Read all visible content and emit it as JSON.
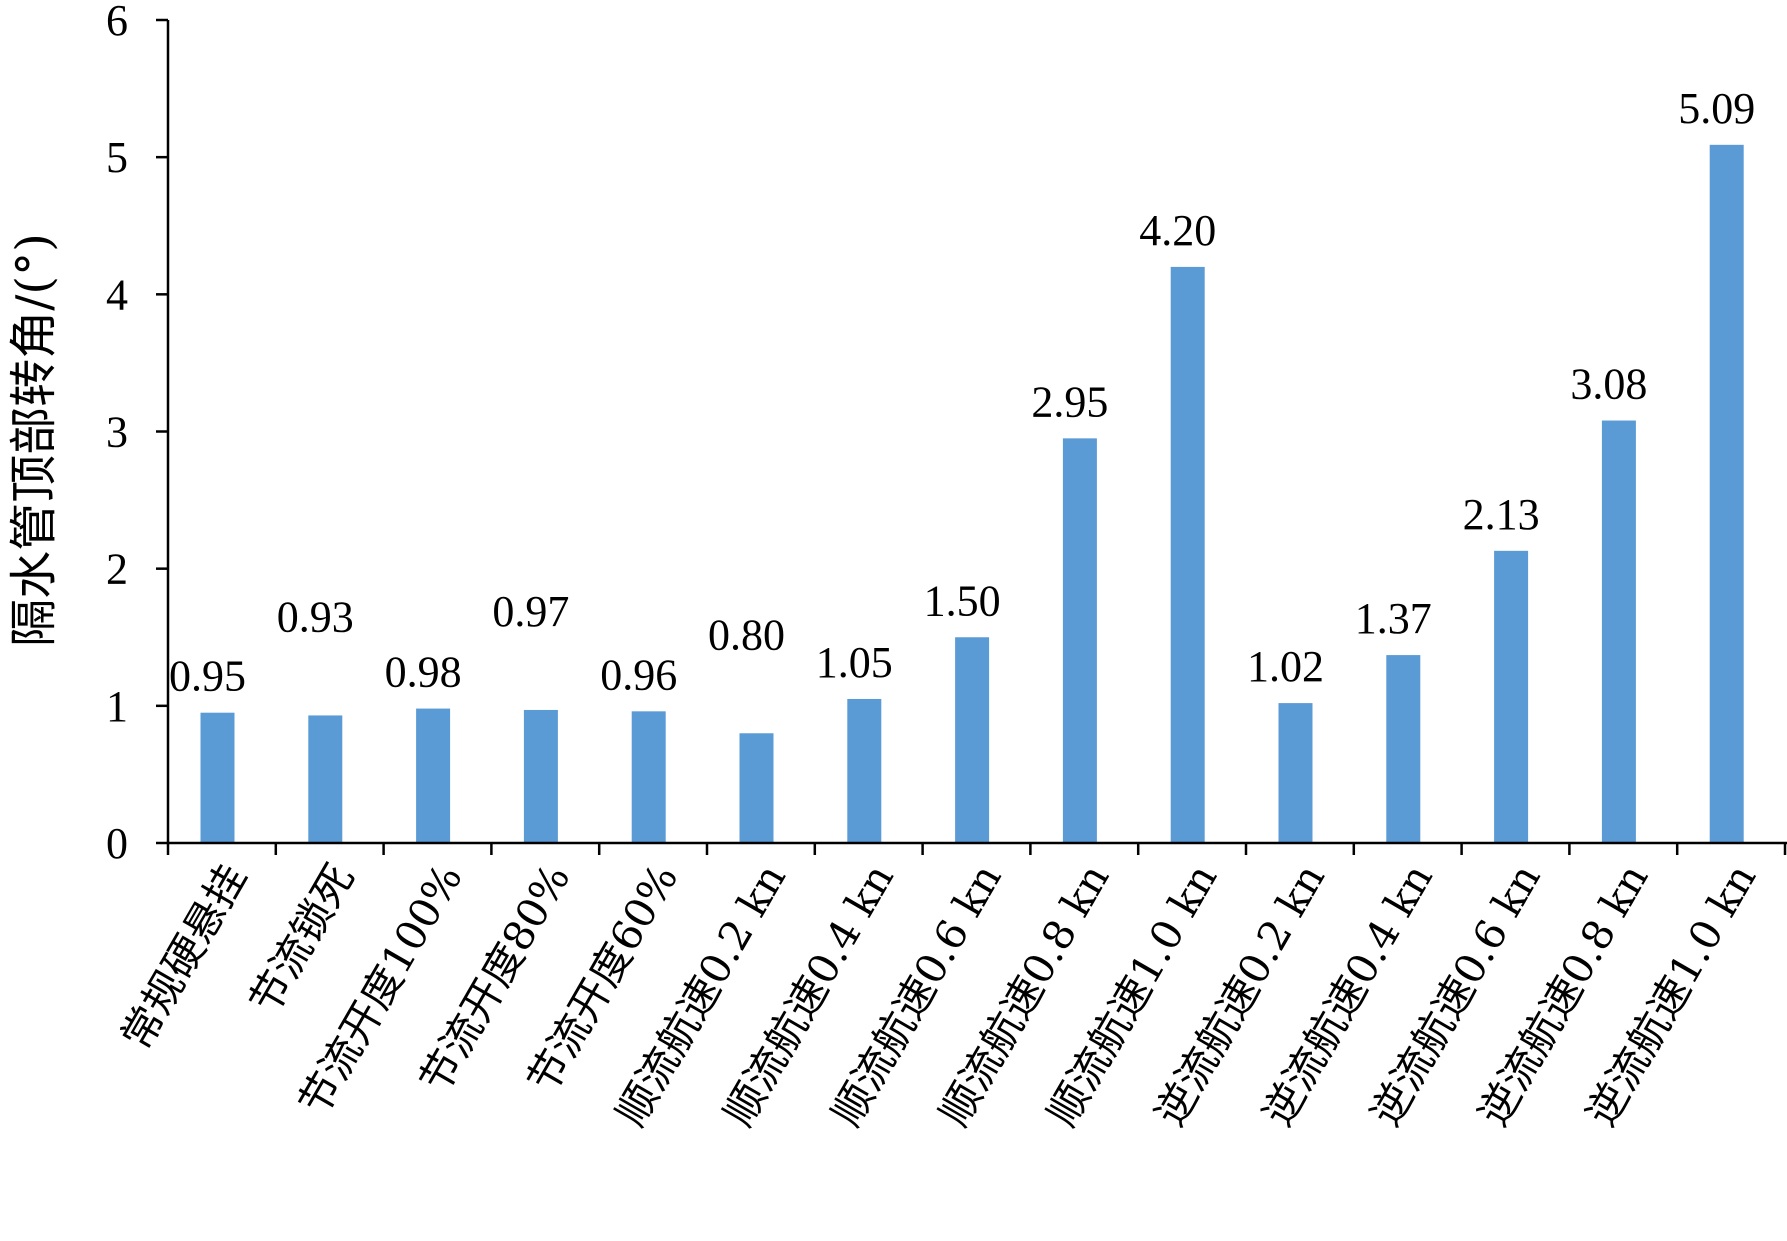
{
  "chart_data": {
    "type": "bar",
    "ylabel": "隔水管顶部转角/(°)",
    "ylim": [
      0,
      6
    ],
    "yticks": [
      "0",
      "1",
      "2",
      "3",
      "4",
      "5",
      "6"
    ],
    "grid": false,
    "bar_color": "#5b9bd5",
    "categories": [
      "常规硬悬挂",
      "节流锁死",
      "节流开度100%",
      "节流开度80%",
      "节流开度60%",
      "顺流航速0.2 kn",
      "顺流航速0.4 kn",
      "顺流航速0.6 kn",
      "顺流航速0.8 kn",
      "顺流航速1.0 kn",
      "逆流航速0.2 kn",
      "逆流航速0.4 kn",
      "逆流航速0.6 kn",
      "逆流航速0.8 kn",
      "逆流航速1.0 kn"
    ],
    "values": [
      0.95,
      0.93,
      0.98,
      0.97,
      0.96,
      0.8,
      1.05,
      1.5,
      2.95,
      4.2,
      1.02,
      1.37,
      2.13,
      3.08,
      5.09
    ],
    "data_labels": [
      "0.95",
      "0.93",
      "0.98",
      "0.97",
      "0.96",
      "0.80",
      "1.05",
      "1.50",
      "2.95",
      "4.20",
      "1.02",
      "1.37",
      "2.13",
      "3.08",
      "5.09"
    ]
  }
}
